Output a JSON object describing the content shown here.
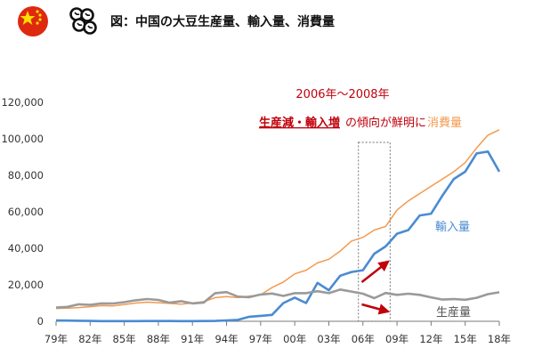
{
  "title": "図：中国の大豆生産量、輸入量、消費量",
  "colors": {
    "consumption": "#F39A4E",
    "imports": "#4A8BD3",
    "production": "#9A9A9A",
    "annotation": "#C0000B",
    "flag": "#DE2910",
    "star": "#FFDE00"
  },
  "icons": {
    "flag": "china-flag-icon",
    "beans": "soybean-icon"
  },
  "annotation": {
    "period": "2006年～2008年",
    "emphasis": "生産減・輸入増",
    "rest": "の傾向が鮮明に"
  },
  "chart_data": {
    "type": "line",
    "x": [
      1979,
      1980,
      1981,
      1982,
      1983,
      1984,
      1985,
      1986,
      1987,
      1988,
      1989,
      1990,
      1991,
      1992,
      1993,
      1994,
      1995,
      1996,
      1997,
      1998,
      1999,
      2000,
      2001,
      2002,
      2003,
      2004,
      2005,
      2006,
      2007,
      2008,
      2009,
      2010,
      2011,
      2012,
      2013,
      2014,
      2015,
      2016,
      2017,
      2018
    ],
    "x_tick_labels": [
      "79年",
      "82年",
      "85年",
      "88年",
      "91年",
      "94年",
      "97年",
      "00年",
      "03年",
      "06年",
      "09年",
      "12年",
      "15年",
      "18年"
    ],
    "ylim": [
      0,
      120000
    ],
    "y_ticks": [
      "0",
      "20,000",
      "40,000",
      "60,000",
      "80,000",
      "100,000",
      "120,000"
    ],
    "grid": false,
    "series": [
      {
        "name": "消費量",
        "key": "consumption",
        "values": [
          7000,
          7200,
          7500,
          8000,
          8600,
          8400,
          9200,
          10000,
          10500,
          10200,
          9800,
          9400,
          10000,
          10800,
          13000,
          13500,
          13000,
          13800,
          14500,
          18500,
          21500,
          26000,
          28000,
          32000,
          34000,
          38500,
          44000,
          46000,
          50000,
          52000,
          61000,
          66000,
          70000,
          74000,
          78000,
          82000,
          87000,
          95000,
          102000,
          105000
        ]
      },
      {
        "name": "輸入量",
        "key": "imports",
        "values": [
          500,
          400,
          300,
          200,
          100,
          100,
          100,
          100,
          150,
          150,
          150,
          100,
          100,
          150,
          200,
          500,
          800,
          2500,
          3000,
          3500,
          10000,
          13000,
          10000,
          21000,
          17000,
          25000,
          27000,
          28000,
          37000,
          41000,
          48000,
          50000,
          58000,
          59000,
          69000,
          78000,
          82000,
          92000,
          93000,
          82000
        ]
      },
      {
        "name": "生産量",
        "key": "production",
        "values": [
          7500,
          7900,
          9300,
          9000,
          9800,
          9700,
          10500,
          11500,
          12200,
          11700,
          10200,
          11000,
          9800,
          10300,
          15400,
          16000,
          13500,
          13200,
          14700,
          15200,
          13900,
          15400,
          15400,
          16500,
          15400,
          17400,
          16300,
          15100,
          12700,
          15500,
          14500,
          15100,
          14500,
          13100,
          11900,
          12200,
          11800,
          12900,
          14900,
          15900
        ]
      }
    ]
  }
}
